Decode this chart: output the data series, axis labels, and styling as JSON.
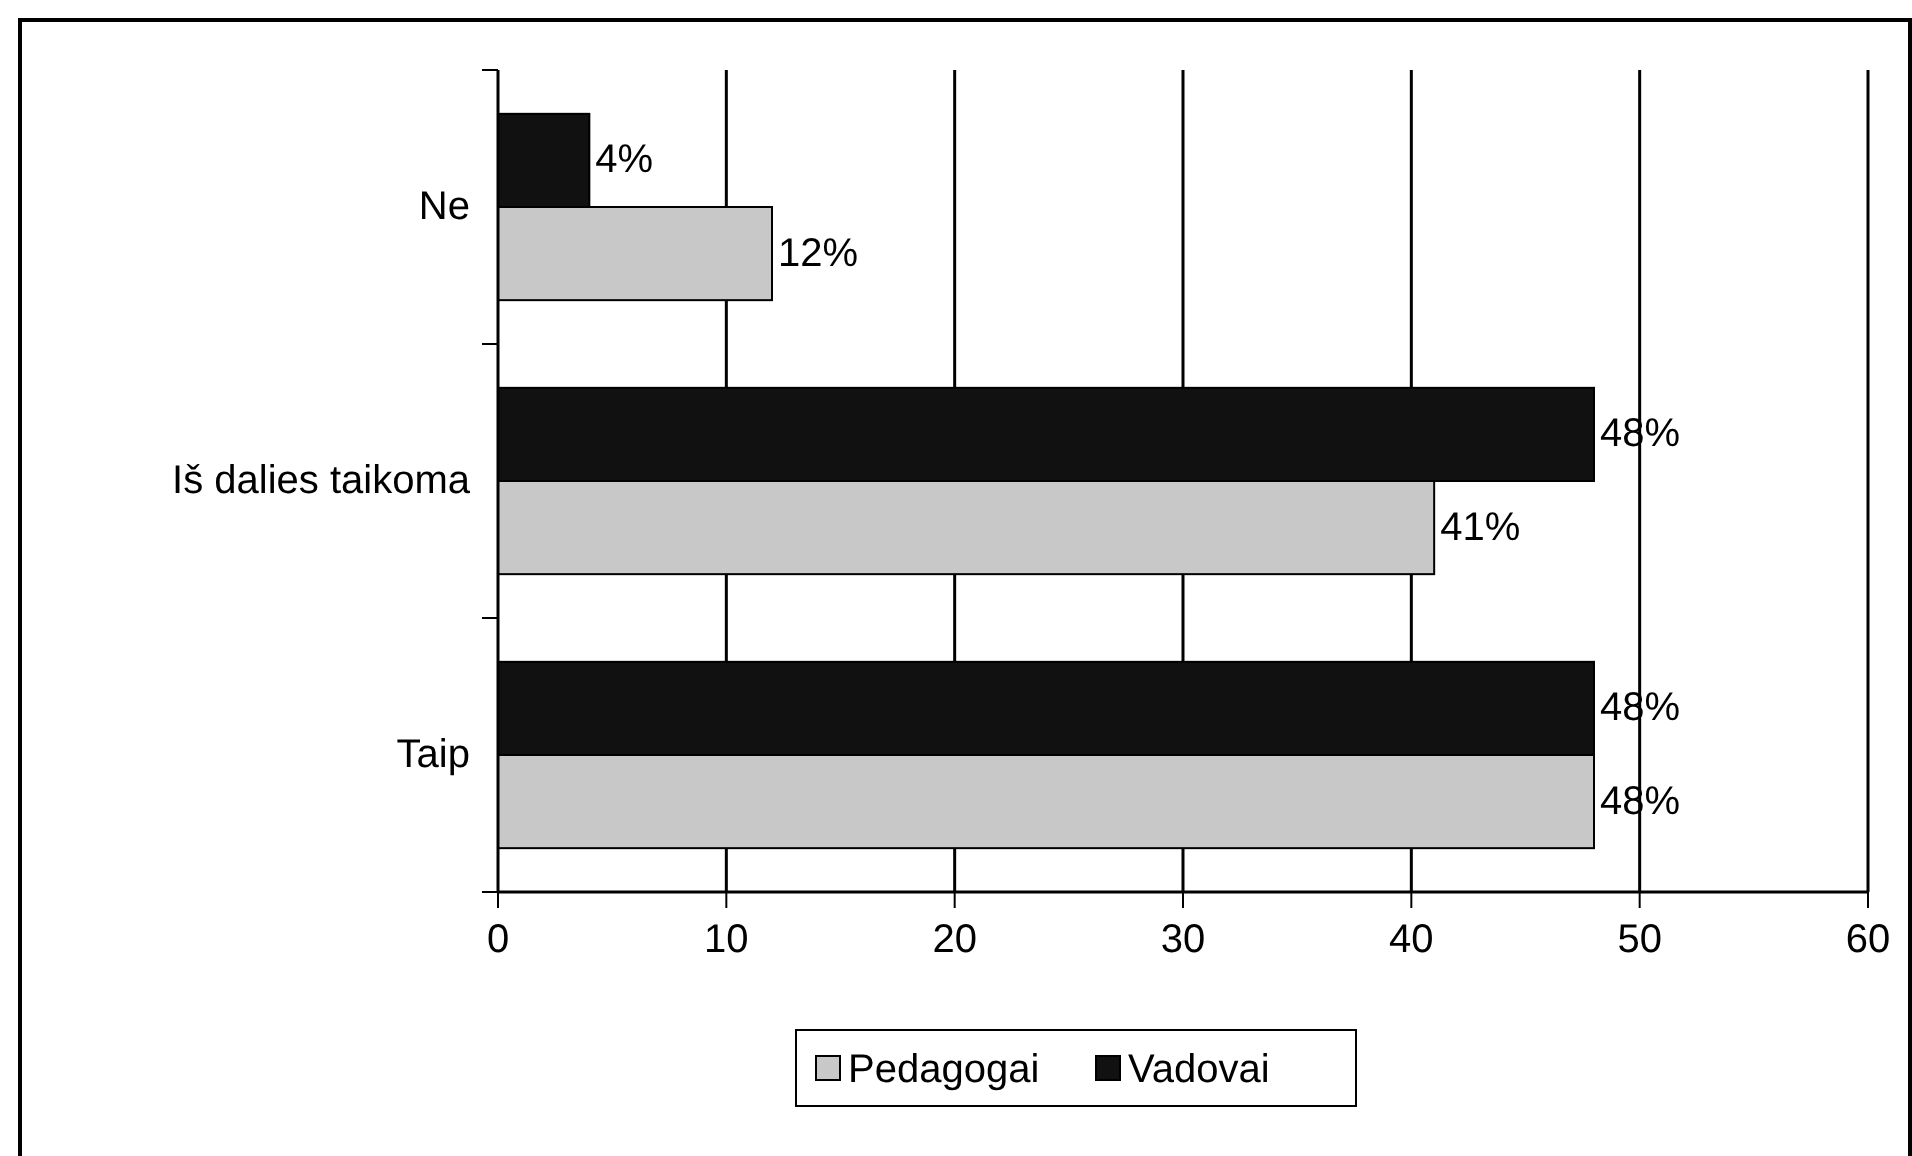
{
  "chart_data": {
    "type": "bar",
    "orientation": "horizontal",
    "categories": [
      "Ne",
      "Iš dalies taikoma",
      "Taip"
    ],
    "series": [
      {
        "name": "Pedagogai",
        "color": "#c8c8c8",
        "values": [
          12,
          41,
          48
        ],
        "value_labels": [
          "12%",
          "41%",
          "48%"
        ]
      },
      {
        "name": "Vadovai",
        "color": "#111111",
        "values": [
          4,
          48,
          48
        ],
        "value_labels": [
          "4%",
          "48%",
          "48%"
        ]
      }
    ],
    "xlim": [
      0,
      60
    ],
    "xticks": [
      0,
      10,
      20,
      30,
      40,
      50,
      60
    ],
    "grid": "x",
    "legend": "bottom"
  }
}
